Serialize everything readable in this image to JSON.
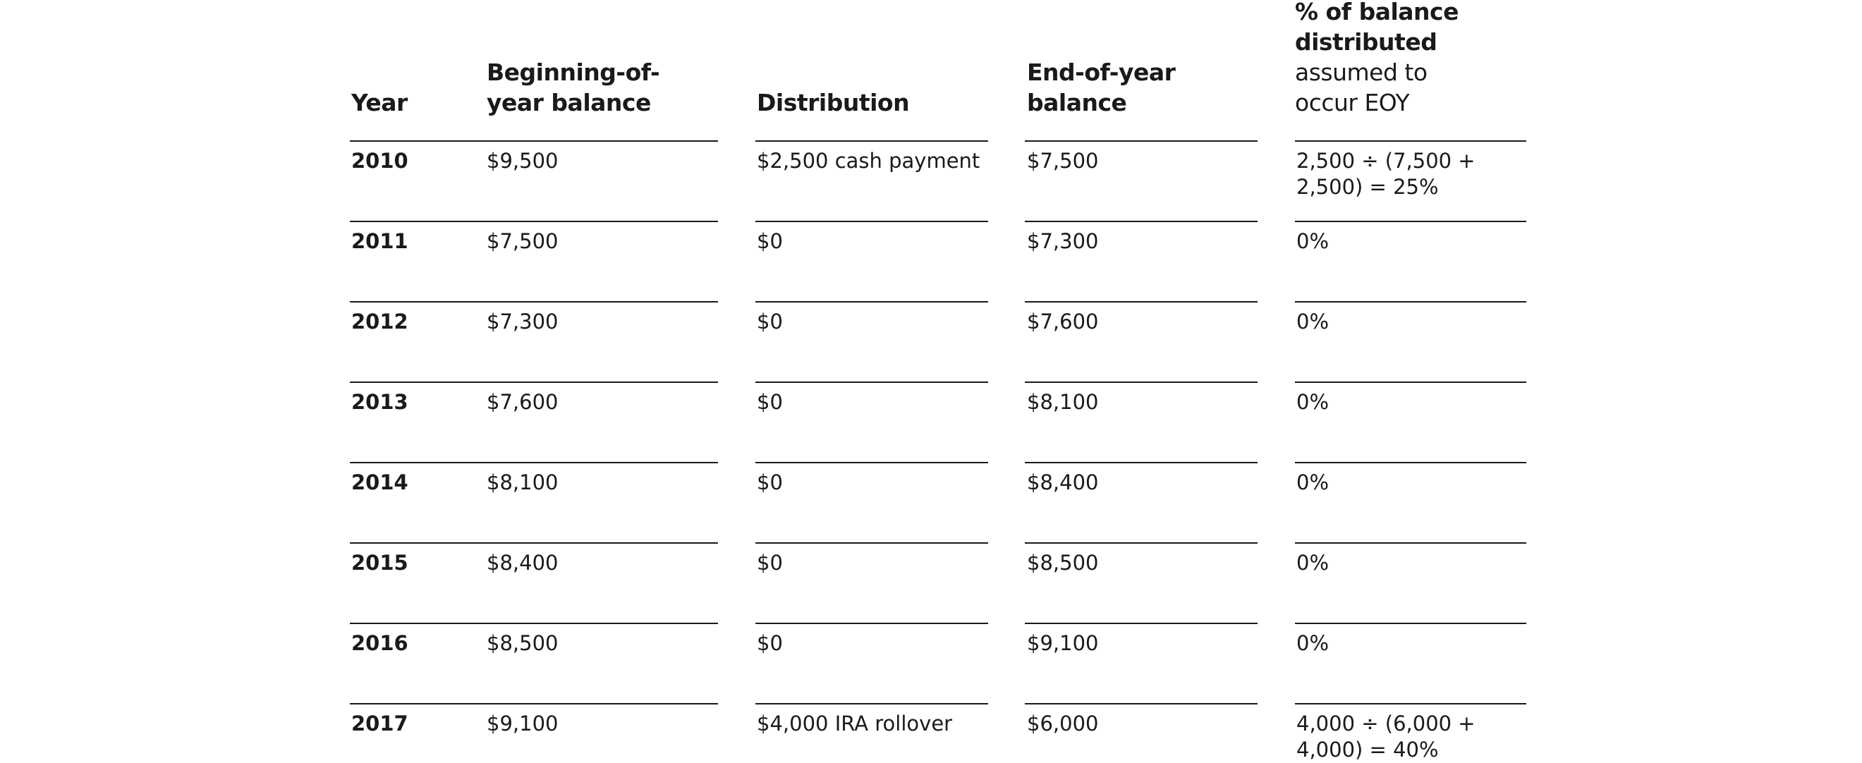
{
  "table": {
    "headers": {
      "year": "Year",
      "begin_line1": "Beginning-of-",
      "begin_line2": "year balance",
      "distribution": "Distribution",
      "end_line1": "End-of-year",
      "end_line2": "balance",
      "pct_line1": "% of balance",
      "pct_line2": "distributed",
      "pct_line3": "assumed to",
      "pct_line4": "occur EOY"
    },
    "rows": [
      {
        "year": "2010",
        "begin": "$9,500",
        "distribution": "$2,500 cash payment",
        "end": "$7,500",
        "pct_line1": "2,500 ÷ (7,500 +",
        "pct_line2": "2,500) = 25%"
      },
      {
        "year": "2011",
        "begin": "$7,500",
        "distribution": "$0",
        "end": "$7,300",
        "pct_line1": "0%",
        "pct_line2": ""
      },
      {
        "year": "2012",
        "begin": "$7,300",
        "distribution": "$0",
        "end": "$7,600",
        "pct_line1": "0%",
        "pct_line2": ""
      },
      {
        "year": "2013",
        "begin": "$7,600",
        "distribution": "$0",
        "end": "$8,100",
        "pct_line1": "0%",
        "pct_line2": ""
      },
      {
        "year": "2014",
        "begin": "$8,100",
        "distribution": "$0",
        "end": "$8,400",
        "pct_line1": "0%",
        "pct_line2": ""
      },
      {
        "year": "2015",
        "begin": "$8,400",
        "distribution": "$0",
        "end": "$8,500",
        "pct_line1": "0%",
        "pct_line2": ""
      },
      {
        "year": "2016",
        "begin": "$8,500",
        "distribution": "$0",
        "end": "$9,100",
        "pct_line1": "0%",
        "pct_line2": ""
      },
      {
        "year": "2017",
        "begin": "$9,100",
        "distribution": "$4,000 IRA rollover",
        "end": "$6,000",
        "pct_line1": "4,000 ÷ (6,000 +",
        "pct_line2": "4,000) = 40%"
      }
    ]
  }
}
